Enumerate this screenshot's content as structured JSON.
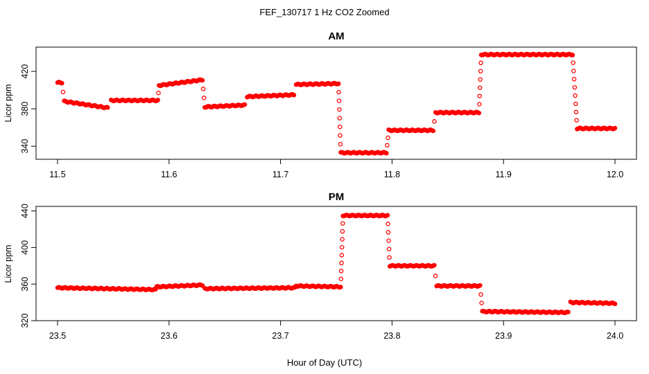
{
  "figure": {
    "title": "FEF_130717  1 Hz CO2 Zoomed",
    "xlabel": "Hour of Day (UTC)"
  },
  "colors": {
    "points": "#ff0000",
    "axes": "#000000"
  },
  "chart_data": [
    {
      "type": "scatter",
      "title": "AM",
      "ylabel": "Licor ppm",
      "xlim": [
        11.5,
        12.0
      ],
      "ylim": [
        326,
        446
      ],
      "xticks": [
        11.5,
        11.6,
        11.7,
        11.8,
        11.9,
        12.0
      ],
      "xtick_labels": [
        "11.5",
        "11.6",
        "11.7",
        "11.8",
        "11.9",
        "12.0"
      ],
      "yticks": [
        340,
        380,
        420
      ],
      "ytick_labels": [
        "340",
        "380",
        "420"
      ],
      "marker": "open-circle",
      "series": [
        {
          "segments": [
            {
              "x": [
                11.5,
                11.504
              ],
              "y": [
                408,
                408
              ]
            },
            {
              "x": [
                11.506,
                11.545
              ],
              "y": [
                388,
                381
              ]
            },
            {
              "x": [
                11.548,
                11.59
              ],
              "y": [
                389,
                389
              ]
            },
            {
              "x": [
                11.591,
                11.63
              ],
              "y": [
                405,
                411
              ]
            },
            {
              "x": [
                11.632,
                11.668
              ],
              "y": [
                382,
                384
              ]
            },
            {
              "x": [
                11.67,
                11.712
              ],
              "y": [
                393,
                395
              ]
            },
            {
              "x": [
                11.714,
                11.752
              ],
              "y": [
                406,
                407
              ]
            },
            {
              "x": [
                11.754,
                11.795
              ],
              "y": [
                333,
                333
              ]
            },
            {
              "x": [
                11.797,
                11.837
              ],
              "y": [
                357,
                357
              ]
            },
            {
              "x": [
                11.839,
                11.878
              ],
              "y": [
                376,
                376
              ]
            },
            {
              "x": [
                11.88,
                11.962
              ],
              "y": [
                438,
                438
              ]
            },
            {
              "x": [
                11.966,
                12.0
              ],
              "y": [
                359,
                359
              ]
            }
          ]
        }
      ]
    },
    {
      "type": "scatter",
      "title": "PM",
      "ylabel": "Licor ppm",
      "xlim": [
        23.5,
        24.0
      ],
      "ylim": [
        320,
        445
      ],
      "xticks": [
        23.5,
        23.6,
        23.7,
        23.8,
        23.9,
        24.0
      ],
      "xtick_labels": [
        "23.5",
        "23.6",
        "23.7",
        "23.8",
        "23.9",
        "24.0"
      ],
      "yticks": [
        320,
        360,
        400,
        440
      ],
      "ytick_labels": [
        "320",
        "360",
        "400",
        "440"
      ],
      "marker": "open-circle",
      "series": [
        {
          "segments": [
            {
              "x": [
                23.5,
                23.588
              ],
              "y": [
                356,
                354
              ]
            },
            {
              "x": [
                23.589,
                23.63
              ],
              "y": [
                357,
                359
              ]
            },
            {
              "x": [
                23.632,
                23.713
              ],
              "y": [
                355,
                356
              ]
            },
            {
              "x": [
                23.714,
                23.754
              ],
              "y": [
                358,
                357
              ]
            },
            {
              "x": [
                23.756,
                23.796
              ],
              "y": [
                435,
                435
              ]
            },
            {
              "x": [
                23.798,
                23.838
              ],
              "y": [
                380,
                380
              ]
            },
            {
              "x": [
                23.84,
                23.879
              ],
              "y": [
                358,
                358
              ]
            },
            {
              "x": [
                23.881,
                23.958
              ],
              "y": [
                330,
                329
              ]
            },
            {
              "x": [
                23.96,
                24.0
              ],
              "y": [
                340,
                339
              ]
            }
          ]
        }
      ]
    }
  ]
}
